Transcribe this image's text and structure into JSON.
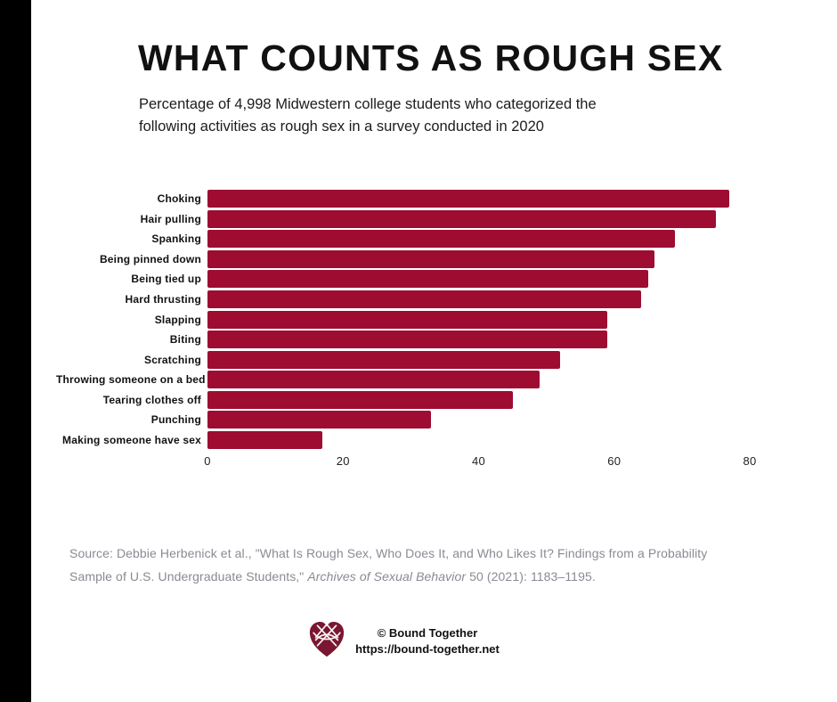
{
  "header": {
    "title": "WHAT COUNTS AS ROUGH SEX",
    "subtitle_line1": "Percentage of 4,998 Midwestern college students who categorized the",
    "subtitle_line2": "following activities as rough sex in a survey conducted in 2020"
  },
  "chart_data": {
    "type": "bar",
    "orientation": "horizontal",
    "title": "WHAT COUNTS AS ROUGH SEX",
    "subtitle": "Percentage of 4,998 Midwestern college students who categorized the following activities as rough sex in a survey conducted in 2020",
    "categories": [
      "Choking",
      "Hair pulling",
      "Spanking",
      "Being pinned down",
      "Being tied up",
      "Hard thrusting",
      "Slapping",
      "Biting",
      "Scratching",
      "Throwing someone on a bed",
      "Tearing clothes off",
      "Punching",
      "Making someone have sex"
    ],
    "values": [
      77,
      75,
      69,
      66,
      65,
      64,
      59,
      59,
      52,
      49,
      45,
      33,
      17
    ],
    "xlabel": "",
    "ylabel": "",
    "xlim": [
      0,
      80
    ],
    "tick_labels": [
      "0",
      "20",
      "40",
      "60",
      "80"
    ],
    "grid": false,
    "legend": false
  },
  "source": {
    "line1": "Source: Debbie Herbenick et al., \"What Is Rough Sex, Who Does It, and Who Likes It? Findings from a Probability",
    "line2_pre": "Sample of U.S. Undergraduate Students,\" ",
    "line2_italic": "Archives of Sexual Behavior",
    "line2_post": " 50 (2021): 1183–1195."
  },
  "footer": {
    "copyright": "© Bound Together",
    "url": "https://bound-together.net",
    "logo_icon": "celtic-knot-heart-icon"
  },
  "colors": {
    "bar": "#9E0C32",
    "logo": "#7A1631",
    "edge_strip": "#000000",
    "title_text": "#111111",
    "source_text": "#8A8A94",
    "background": "#FFFFFF"
  }
}
